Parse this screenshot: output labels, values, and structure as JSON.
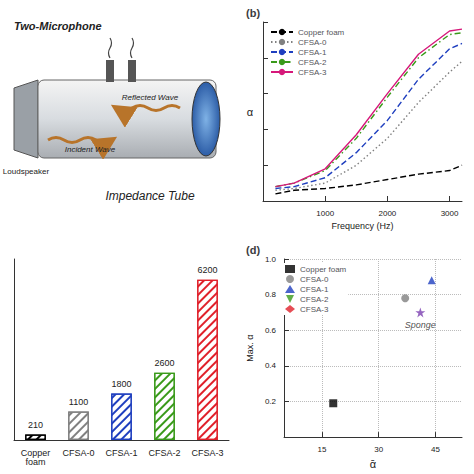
{
  "diagram": {
    "microphone": "Two-Microphone",
    "reflected": "Reflected Wave",
    "incident": "Incident Wave",
    "caption": "Impedance Tube",
    "speaker": "Loudspeaker"
  },
  "chart_data": [
    {
      "type": "line",
      "title": "(b)",
      "x_label": "Frequency (Hz)",
      "y_label": "α",
      "x": [
        200,
        500,
        1000,
        1500,
        2000,
        2500,
        3000,
        3200
      ],
      "series": [
        {
          "name": "Copper foam",
          "color": "#000000",
          "line_style": "dashed",
          "values": [
            0.04,
            0.06,
            0.07,
            0.09,
            0.12,
            0.15,
            0.17,
            0.2
          ]
        },
        {
          "name": "CFSA-0",
          "color": "#808080",
          "line_style": "dotted",
          "values": [
            0.06,
            0.07,
            0.1,
            0.2,
            0.35,
            0.55,
            0.72,
            0.78
          ]
        },
        {
          "name": "CFSA-1",
          "color": "#1f3fbf",
          "line_style": "dashed",
          "values": [
            0.07,
            0.08,
            0.13,
            0.27,
            0.45,
            0.68,
            0.85,
            0.88
          ]
        },
        {
          "name": "CFSA-2",
          "color": "#3a9a1a",
          "line_style": "dashdot",
          "values": [
            0.08,
            0.1,
            0.17,
            0.35,
            0.58,
            0.8,
            0.93,
            0.94
          ]
        },
        {
          "name": "CFSA-3",
          "color": "#d6187a",
          "line_style": "solid",
          "values": [
            0.08,
            0.1,
            0.18,
            0.37,
            0.6,
            0.82,
            0.95,
            0.96
          ]
        }
      ],
      "xlim": [
        0,
        3200
      ],
      "xticks": [
        1000,
        2000,
        3000
      ],
      "ylim": [
        0,
        1
      ],
      "yticks": [
        0,
        0.2,
        0.4,
        0.6,
        0.8,
        1
      ],
      "tick_labels": "x",
      "legend": "upper left",
      "grid": false
    },
    {
      "type": "bar",
      "categories": [
        "Copper foam",
        "CFSA-0",
        "CFSA-1",
        "CFSA-2",
        "CFSA-3"
      ],
      "values": [
        210,
        1100,
        1800,
        2600,
        6200
      ],
      "colors": [
        "#000000",
        "#808080",
        "#1f3fbf",
        "#3a9a1a",
        "#e0202a"
      ],
      "ylim": [
        0,
        7000
      ],
      "data_labels": true,
      "tick_labels": "x",
      "grid": false
    },
    {
      "type": "scatter",
      "title": "(d)",
      "x_label": "ᾱ",
      "y_label": "Max. α",
      "series": [
        {
          "name": "Copper foam",
          "color": "#000000",
          "marker": "square",
          "x": [
            18
          ],
          "values": [
            0.19
          ]
        },
        {
          "name": "CFSA-0",
          "color": "#808080",
          "marker": "circle",
          "x": [
            37
          ],
          "values": [
            0.78
          ]
        },
        {
          "name": "CFSA-1",
          "color": "#1f3fbf",
          "marker": "triangle",
          "x": [
            44
          ],
          "values": [
            0.88
          ]
        },
        {
          "name": "CFSA-2",
          "color": "#3a9a1a",
          "marker": "triangle-down",
          "x": [],
          "values": []
        },
        {
          "name": "CFSA-3",
          "color": "#e0202a",
          "marker": "diamond",
          "x": [],
          "values": []
        }
      ],
      "annotations": [
        {
          "text": "Sponge",
          "x": 41,
          "y": 0.7,
          "color": "#7a3fb0",
          "marker": "star"
        }
      ],
      "xlim": [
        5,
        52
      ],
      "xticks": [
        15,
        30,
        45
      ],
      "ylim": [
        0,
        1
      ],
      "yticks": [
        0.2,
        0.4,
        0.6,
        0.8,
        {
          "value": 1,
          "label": "1.0"
        }
      ],
      "grid": true,
      "legend": "upper left"
    }
  ]
}
